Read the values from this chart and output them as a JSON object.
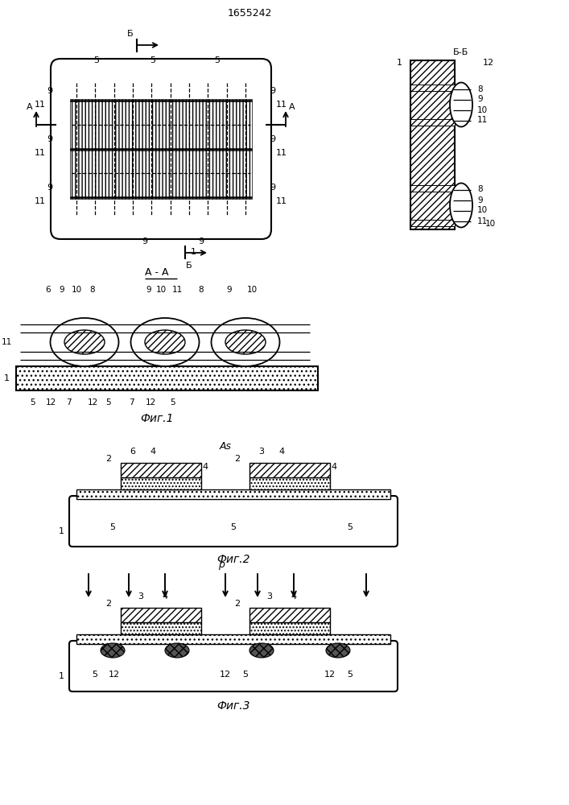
{
  "patent_number": "1655242",
  "fig1_caption": "Фиг.1",
  "fig2_caption": "Фиг.2",
  "fig3_caption": "Фиг.3",
  "bg_color": "#ffffff",
  "line_color": "#000000"
}
